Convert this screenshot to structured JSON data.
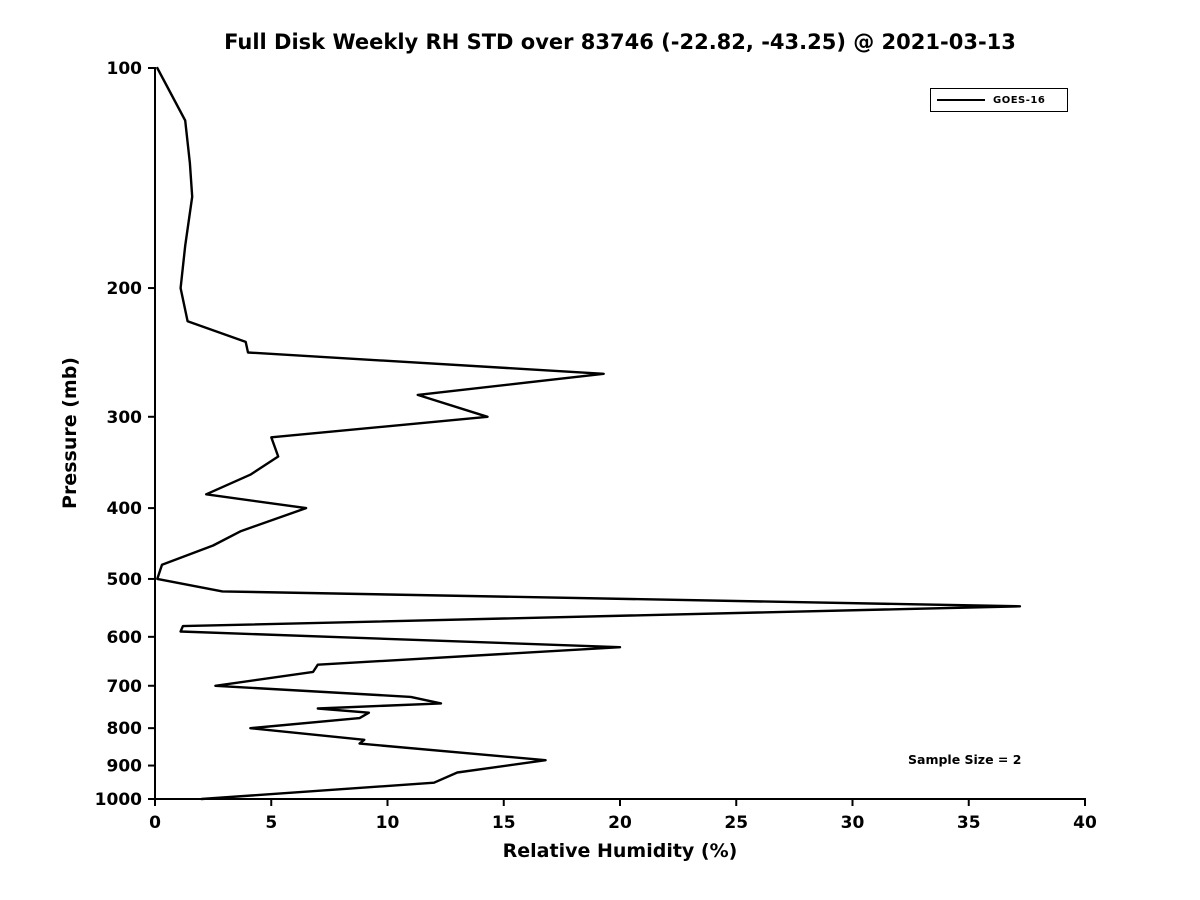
{
  "title": "Full Disk Weekly RH STD over 83746 (-22.82, -43.25) @ 2021-03-13",
  "xlabel": "Relative Humidity (%)",
  "ylabel": "Pressure (mb)",
  "legend": {
    "label": "GOES-16"
  },
  "annotation": "Sample Size = 2",
  "colors": {
    "line": "#000000",
    "background": "#ffffff"
  },
  "chart_data": {
    "type": "line",
    "title": "Full Disk Weekly RH STD over 83746 (-22.82, -43.25) @ 2021-03-13",
    "xlabel": "Relative Humidity (%)",
    "ylabel": "Pressure (mb)",
    "grid": false,
    "legend_position": "upper right",
    "x_axis": {
      "min": 0,
      "max": 40,
      "ticks": [
        0,
        5,
        10,
        15,
        20,
        25,
        30,
        35,
        40
      ]
    },
    "y_axis": {
      "min": 100,
      "max": 1000,
      "scale": "log",
      "direction": "reversed",
      "ticks": [
        100,
        200,
        300,
        400,
        500,
        600,
        700,
        800,
        900,
        1000
      ]
    },
    "series": [
      {
        "name": "GOES-16",
        "color": "#000000",
        "points_format": "[pressure_mb, relative_humidity_pct]",
        "points": [
          [
            100,
            0.1
          ],
          [
            118,
            1.3
          ],
          [
            135,
            1.5
          ],
          [
            150,
            1.6
          ],
          [
            175,
            1.3
          ],
          [
            200,
            1.1
          ],
          [
            222,
            1.4
          ],
          [
            237,
            3.9
          ],
          [
            245,
            4.0
          ],
          [
            262,
            19.3
          ],
          [
            280,
            11.3
          ],
          [
            300,
            14.3
          ],
          [
            320,
            5.0
          ],
          [
            340,
            5.3
          ],
          [
            360,
            4.1
          ],
          [
            383,
            2.2
          ],
          [
            400,
            6.5
          ],
          [
            430,
            3.7
          ],
          [
            450,
            2.5
          ],
          [
            478,
            0.3
          ],
          [
            500,
            0.1
          ],
          [
            520,
            2.9
          ],
          [
            545,
            37.2
          ],
          [
            580,
            1.2
          ],
          [
            590,
            1.1
          ],
          [
            620,
            20.0
          ],
          [
            655,
            7.0
          ],
          [
            670,
            6.8
          ],
          [
            700,
            2.6
          ],
          [
            725,
            11.0
          ],
          [
            740,
            12.3
          ],
          [
            752,
            7.0
          ],
          [
            762,
            9.2
          ],
          [
            775,
            8.8
          ],
          [
            800,
            4.1
          ],
          [
            830,
            9.0
          ],
          [
            840,
            8.8
          ],
          [
            885,
            16.8
          ],
          [
            920,
            13.0
          ],
          [
            950,
            12.0
          ],
          [
            1000,
            2.0
          ]
        ]
      }
    ]
  }
}
